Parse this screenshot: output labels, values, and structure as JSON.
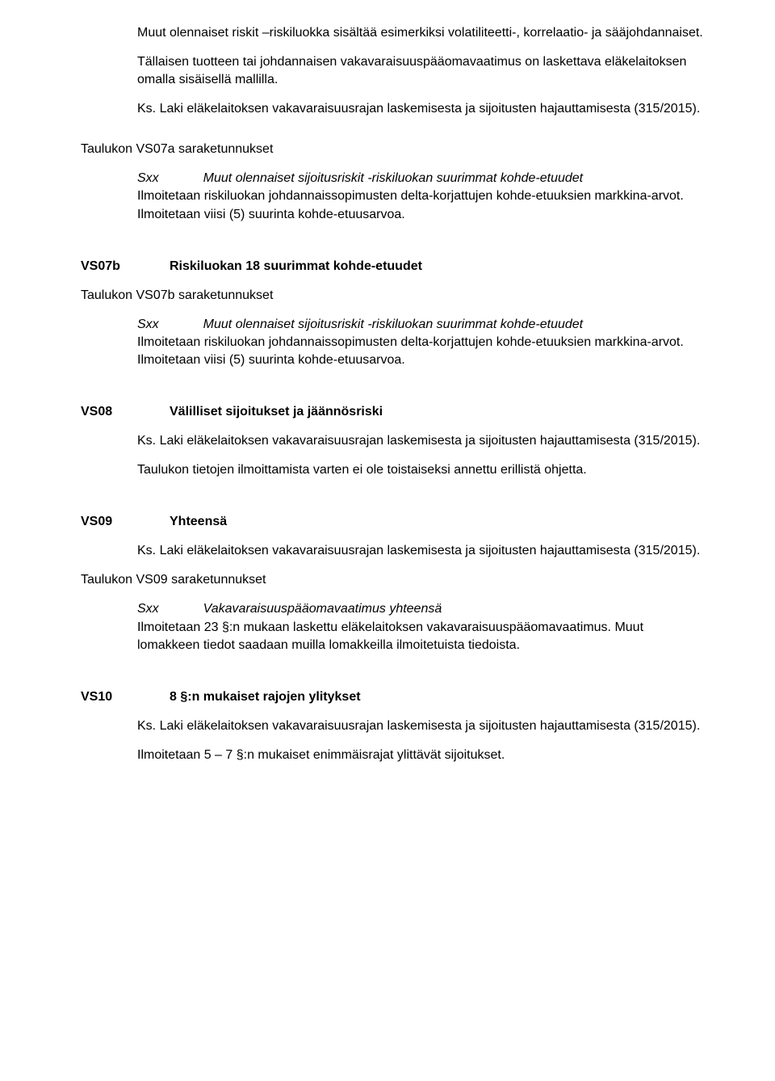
{
  "intro": {
    "p1": "Muut olennaiset riskit –riskiluokka sisältää esimerkiksi volatiliteetti-, korrelaatio- ja sääjohdannaiset.",
    "p2": "Tällaisen tuotteen tai johdannaisen vakavaraisuuspääomavaatimus on laskettava eläkelaitoksen omalla sisäisellä mallilla.",
    "p3": "Ks. Laki eläkelaitoksen vakavaraisuusrajan laskemisesta ja sijoitusten hajauttamisesta (315/2015)."
  },
  "vs07a": {
    "columns_label": "Taulukon VS07a saraketunnukset",
    "sxx": "Sxx",
    "sxx_title": "Muut olennaiset sijoitusriskit -riskiluokan suurimmat kohde-etuudet",
    "sxx_body": "Ilmoitetaan riskiluokan johdannaissopimusten delta-korjattujen kohde-etuuksien markkina-arvot. Ilmoitetaan viisi (5) suurinta kohde-etuusarvoa."
  },
  "vs07b": {
    "code": "VS07b",
    "title": "Riskiluokan 18 suurimmat kohde-etuudet",
    "columns_label": "Taulukon VS07b saraketunnukset",
    "sxx": "Sxx",
    "sxx_title": "Muut olennaiset sijoitusriskit -riskiluokan suurimmat kohde-etuudet",
    "sxx_body": "Ilmoitetaan riskiluokan johdannaissopimusten delta-korjattujen kohde-etuuksien markkina-arvot. Ilmoitetaan viisi (5) suurinta kohde-etuusarvoa."
  },
  "vs08": {
    "code": "VS08",
    "title": "Välilliset sijoitukset ja jäännösriski",
    "p1": "Ks. Laki eläkelaitoksen vakavaraisuusrajan laskemisesta ja sijoitusten hajauttamisesta (315/2015).",
    "p2": "Taulukon tietojen ilmoittamista varten ei ole toistaiseksi annettu erillistä ohjetta."
  },
  "vs09": {
    "code": "VS09",
    "title": "Yhteensä",
    "p1": "Ks. Laki eläkelaitoksen vakavaraisuusrajan laskemisesta ja sijoitusten hajauttamisesta (315/2015).",
    "columns_label": "Taulukon VS09 saraketunnukset",
    "sxx": "Sxx",
    "sxx_title": "Vakavaraisuuspääomavaatimus yhteensä",
    "sxx_body": "Ilmoitetaan 23 §:n mukaan laskettu eläkelaitoksen vakavaraisuuspääomavaatimus. Muut lomakkeen tiedot saadaan muilla lomakkeilla ilmoitetuista tiedoista."
  },
  "vs10": {
    "code": "VS10",
    "title": "8 §:n mukaiset rajojen ylitykset",
    "p1": "Ks. Laki eläkelaitoksen vakavaraisuusrajan laskemisesta ja sijoitusten hajauttamisesta (315/2015).",
    "p2": "Ilmoitetaan 5 – 7 §:n mukaiset enimmäisrajat ylittävät sijoitukset."
  }
}
